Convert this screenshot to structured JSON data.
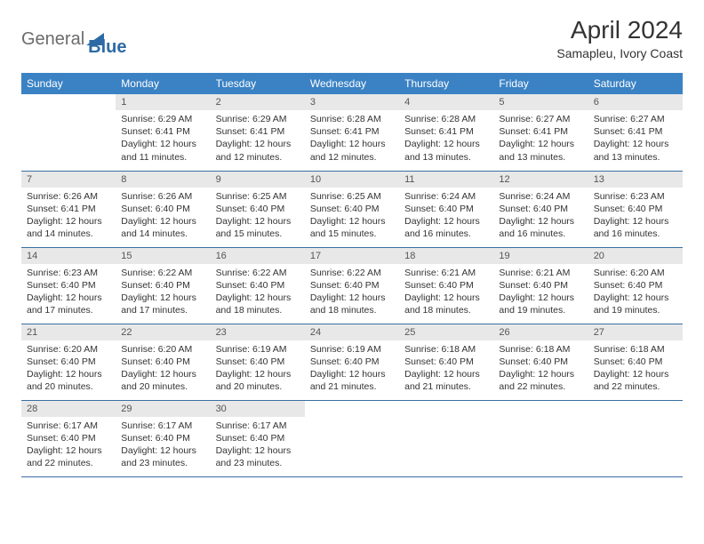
{
  "brand": {
    "word1": "General",
    "word2": "Blue",
    "word1_color": "#6b6b6b",
    "word2_color": "#2d6aa3",
    "tri_color": "#2d6aa3"
  },
  "title": "April 2024",
  "location": "Samapleu, Ivory Coast",
  "colors": {
    "header_bg": "#3b82c4",
    "header_fg": "#ffffff",
    "daynum_bg": "#e8e8e8",
    "row_border": "#3b6fa3"
  },
  "weekdays": [
    "Sunday",
    "Monday",
    "Tuesday",
    "Wednesday",
    "Thursday",
    "Friday",
    "Saturday"
  ],
  "first_weekday": 1,
  "days": [
    {
      "n": 1,
      "sunrise": "6:29 AM",
      "sunset": "6:41 PM",
      "daylight": "12 hours and 11 minutes."
    },
    {
      "n": 2,
      "sunrise": "6:29 AM",
      "sunset": "6:41 PM",
      "daylight": "12 hours and 12 minutes."
    },
    {
      "n": 3,
      "sunrise": "6:28 AM",
      "sunset": "6:41 PM",
      "daylight": "12 hours and 12 minutes."
    },
    {
      "n": 4,
      "sunrise": "6:28 AM",
      "sunset": "6:41 PM",
      "daylight": "12 hours and 13 minutes."
    },
    {
      "n": 5,
      "sunrise": "6:27 AM",
      "sunset": "6:41 PM",
      "daylight": "12 hours and 13 minutes."
    },
    {
      "n": 6,
      "sunrise": "6:27 AM",
      "sunset": "6:41 PM",
      "daylight": "12 hours and 13 minutes."
    },
    {
      "n": 7,
      "sunrise": "6:26 AM",
      "sunset": "6:41 PM",
      "daylight": "12 hours and 14 minutes."
    },
    {
      "n": 8,
      "sunrise": "6:26 AM",
      "sunset": "6:40 PM",
      "daylight": "12 hours and 14 minutes."
    },
    {
      "n": 9,
      "sunrise": "6:25 AM",
      "sunset": "6:40 PM",
      "daylight": "12 hours and 15 minutes."
    },
    {
      "n": 10,
      "sunrise": "6:25 AM",
      "sunset": "6:40 PM",
      "daylight": "12 hours and 15 minutes."
    },
    {
      "n": 11,
      "sunrise": "6:24 AM",
      "sunset": "6:40 PM",
      "daylight": "12 hours and 16 minutes."
    },
    {
      "n": 12,
      "sunrise": "6:24 AM",
      "sunset": "6:40 PM",
      "daylight": "12 hours and 16 minutes."
    },
    {
      "n": 13,
      "sunrise": "6:23 AM",
      "sunset": "6:40 PM",
      "daylight": "12 hours and 16 minutes."
    },
    {
      "n": 14,
      "sunrise": "6:23 AM",
      "sunset": "6:40 PM",
      "daylight": "12 hours and 17 minutes."
    },
    {
      "n": 15,
      "sunrise": "6:22 AM",
      "sunset": "6:40 PM",
      "daylight": "12 hours and 17 minutes."
    },
    {
      "n": 16,
      "sunrise": "6:22 AM",
      "sunset": "6:40 PM",
      "daylight": "12 hours and 18 minutes."
    },
    {
      "n": 17,
      "sunrise": "6:22 AM",
      "sunset": "6:40 PM",
      "daylight": "12 hours and 18 minutes."
    },
    {
      "n": 18,
      "sunrise": "6:21 AM",
      "sunset": "6:40 PM",
      "daylight": "12 hours and 18 minutes."
    },
    {
      "n": 19,
      "sunrise": "6:21 AM",
      "sunset": "6:40 PM",
      "daylight": "12 hours and 19 minutes."
    },
    {
      "n": 20,
      "sunrise": "6:20 AM",
      "sunset": "6:40 PM",
      "daylight": "12 hours and 19 minutes."
    },
    {
      "n": 21,
      "sunrise": "6:20 AM",
      "sunset": "6:40 PM",
      "daylight": "12 hours and 20 minutes."
    },
    {
      "n": 22,
      "sunrise": "6:20 AM",
      "sunset": "6:40 PM",
      "daylight": "12 hours and 20 minutes."
    },
    {
      "n": 23,
      "sunrise": "6:19 AM",
      "sunset": "6:40 PM",
      "daylight": "12 hours and 20 minutes."
    },
    {
      "n": 24,
      "sunrise": "6:19 AM",
      "sunset": "6:40 PM",
      "daylight": "12 hours and 21 minutes."
    },
    {
      "n": 25,
      "sunrise": "6:18 AM",
      "sunset": "6:40 PM",
      "daylight": "12 hours and 21 minutes."
    },
    {
      "n": 26,
      "sunrise": "6:18 AM",
      "sunset": "6:40 PM",
      "daylight": "12 hours and 22 minutes."
    },
    {
      "n": 27,
      "sunrise": "6:18 AM",
      "sunset": "6:40 PM",
      "daylight": "12 hours and 22 minutes."
    },
    {
      "n": 28,
      "sunrise": "6:17 AM",
      "sunset": "6:40 PM",
      "daylight": "12 hours and 22 minutes."
    },
    {
      "n": 29,
      "sunrise": "6:17 AM",
      "sunset": "6:40 PM",
      "daylight": "12 hours and 23 minutes."
    },
    {
      "n": 30,
      "sunrise": "6:17 AM",
      "sunset": "6:40 PM",
      "daylight": "12 hours and 23 minutes."
    }
  ],
  "labels": {
    "sunrise": "Sunrise:",
    "sunset": "Sunset:",
    "daylight": "Daylight:"
  }
}
